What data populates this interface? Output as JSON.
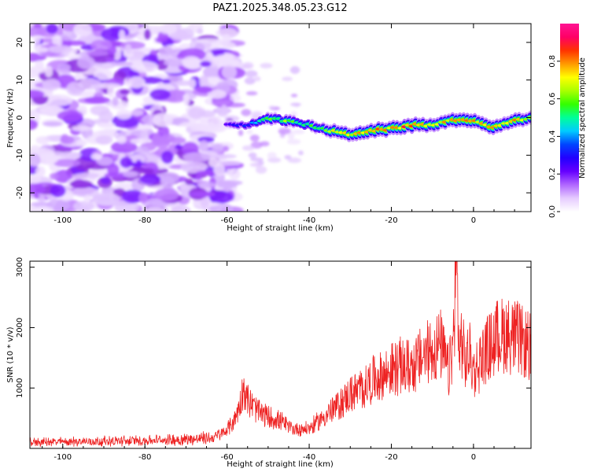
{
  "title": "PAZ1.2025.348.05.23.G12",
  "chart_data": [
    {
      "type": "heatmap",
      "xlabel": "Height of straight line (km)",
      "ylabel": "Frequency (Hz)",
      "xlim": [
        -108,
        14
      ],
      "ylim": [
        -25,
        25
      ],
      "xticks": [
        -100,
        -80,
        -60,
        -40,
        -20,
        0
      ],
      "xtick_labels": [
        "-100",
        "-80",
        "-60",
        "-40",
        "-20",
        "0"
      ],
      "yticks": [
        -20,
        -10,
        0,
        10,
        20
      ],
      "ytick_labels": [
        "-20",
        "-10",
        "0",
        "10",
        "20"
      ],
      "noise_region_x": [
        -108,
        -60
      ],
      "signal_trace": {
        "x": [
          -60,
          -55,
          -50,
          -45,
          -40,
          -35,
          -30,
          -25,
          -20,
          -15,
          -10,
          -5,
          0,
          5,
          10,
          14
        ],
        "frequency": [
          -2,
          -2,
          0,
          -1,
          -2,
          -3.5,
          -4.5,
          -3.5,
          -3,
          -2,
          -2,
          -0.5,
          -1,
          -2.5,
          -1,
          0
        ],
        "amplitude": [
          0.25,
          0.35,
          0.6,
          0.65,
          0.55,
          0.7,
          0.75,
          0.8,
          0.85,
          0.85,
          0.85,
          0.75,
          0.8,
          0.85,
          0.8,
          0.75
        ]
      }
    },
    {
      "type": "colorbar",
      "label": "Normalized spectral amplitude",
      "range": [
        0,
        1
      ],
      "ticks": [
        0.0,
        0.2,
        0.4,
        0.6,
        0.8
      ],
      "tick_labels": [
        "0.0",
        "0.2",
        "0.4",
        "0.6",
        "0.8"
      ],
      "colors": [
        "#ffffff",
        "#e6ccff",
        "#b066ff",
        "#6600ff",
        "#2200ff",
        "#0044ff",
        "#00ccff",
        "#00ff99",
        "#33ff00",
        "#aaff00",
        "#ffff00",
        "#ff9900",
        "#ff3300",
        "#ff0066",
        "#ff1493"
      ]
    },
    {
      "type": "line",
      "xlabel": "Height of straight line (km)",
      "ylabel": "SNR (10 * v/v)",
      "xlim": [
        -108,
        14
      ],
      "ylim": [
        0,
        3100
      ],
      "xticks": [
        -100,
        -80,
        -60,
        -40,
        -20,
        0
      ],
      "xtick_labels": [
        "-100",
        "-80",
        "-60",
        "-40",
        "-20",
        "0"
      ],
      "yticks": [
        1000,
        2000,
        3000
      ],
      "ytick_labels": [
        "1000",
        "2000",
        "3000"
      ],
      "line_color": "#ee2222",
      "series": [
        {
          "name": "SNR",
          "x": [
            -108,
            -100,
            -90,
            -80,
            -70,
            -63,
            -60,
            -58,
            -57,
            -56,
            -55,
            -53,
            -51,
            -49,
            -47,
            -45,
            -43,
            -40,
            -38,
            -36,
            -34,
            -32,
            -30,
            -28,
            -26,
            -24,
            -22,
            -20,
            -18,
            -16,
            -14,
            -12,
            -10,
            -8,
            -6,
            -5,
            -4.5,
            -4,
            -3.5,
            -3,
            -2,
            -1,
            0,
            2,
            4,
            6,
            8,
            10,
            12,
            14
          ],
          "y": [
            100,
            110,
            120,
            130,
            150,
            180,
            300,
            500,
            700,
            1000,
            800,
            650,
            550,
            500,
            450,
            350,
            320,
            330,
            430,
            550,
            650,
            760,
            900,
            950,
            1050,
            1150,
            1200,
            1300,
            1350,
            1350,
            1400,
            1550,
            1650,
            1700,
            1250,
            1700,
            2500,
            3000,
            1500,
            1800,
            1400,
            1600,
            1250,
            1500,
            1700,
            1850,
            1900,
            1850,
            1750,
            1650
          ]
        }
      ]
    }
  ]
}
